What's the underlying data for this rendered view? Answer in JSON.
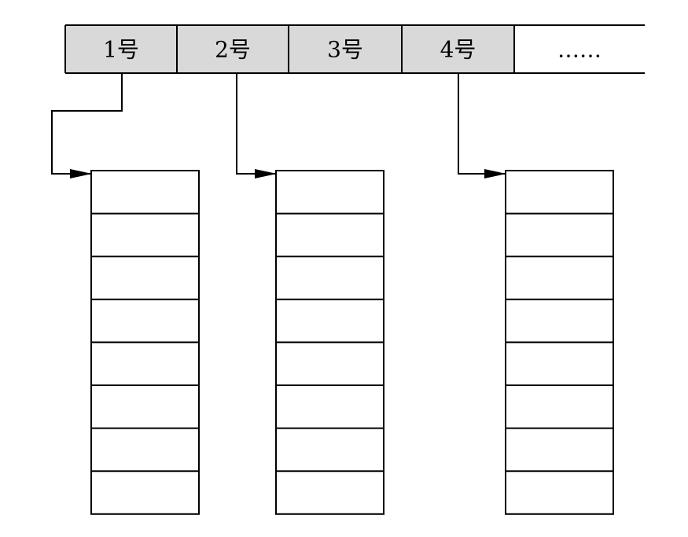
{
  "header": {
    "cells": [
      {
        "label": "1号",
        "filled": true
      },
      {
        "label": "2号",
        "filled": true
      },
      {
        "label": "3号",
        "filled": true
      },
      {
        "label": "4号",
        "filled": true
      },
      {
        "label": "……",
        "filled": false
      }
    ]
  },
  "columns": [
    {
      "source_cell": 0,
      "rows": 8
    },
    {
      "source_cell": 1,
      "rows": 8
    },
    {
      "source_cell": 3,
      "rows": 8
    }
  ],
  "colors": {
    "cell_fill": "#d9d9d9",
    "line": "#000000",
    "background": "#ffffff"
  }
}
